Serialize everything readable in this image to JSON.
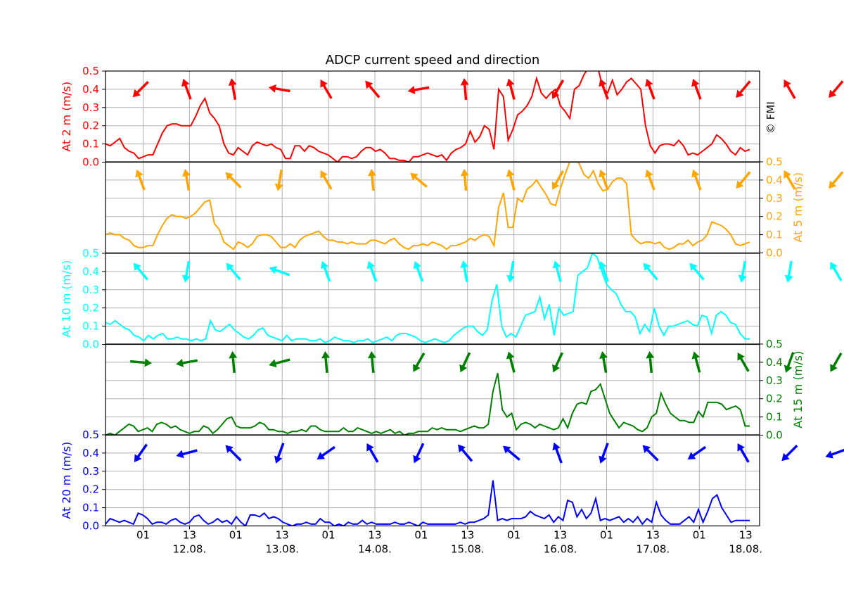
{
  "chart_data": {
    "type": "line",
    "title": "ADCP current speed and direction",
    "watermark": "© FMI",
    "x_major_ticks": [
      "12.08.",
      "13.08.",
      "14.08.",
      "15.08.",
      "16.08.",
      "17.08.",
      "18.08."
    ],
    "x_minor_tick_label_01": "01",
    "x_minor_tick_label_13": "13",
    "y_ticks": [
      "0.0",
      "0.1",
      "0.2",
      "0.3",
      "0.4",
      "0.5"
    ],
    "ylim": [
      0,
      0.5
    ],
    "panels": [
      {
        "name": "At 2 m (m/s)",
        "color": "#ff0000",
        "axis_side": "left",
        "speed": [
          0.1,
          0.09,
          0.11,
          0.13,
          0.08,
          0.06,
          0.05,
          0.02,
          0.03,
          0.04,
          0.04,
          0.1,
          0.16,
          0.2,
          0.21,
          0.21,
          0.2,
          0.2,
          0.2,
          0.25,
          0.31,
          0.35,
          0.27,
          0.24,
          0.2,
          0.1,
          0.05,
          0.04,
          0.08,
          0.06,
          0.04,
          0.09,
          0.11,
          0.1,
          0.09,
          0.1,
          0.08,
          0.07,
          0.02,
          0.02,
          0.09,
          0.09,
          0.06,
          0.09,
          0.08,
          0.06,
          0.05,
          0.04,
          0.02,
          0.0,
          0.03,
          0.03,
          0.02,
          0.03,
          0.06,
          0.08,
          0.08,
          0.06,
          0.07,
          0.05,
          0.02,
          0.02,
          0.01,
          0.01,
          0.0,
          0.03,
          0.03,
          0.04,
          0.05,
          0.04,
          0.03,
          0.04,
          0.01,
          0.05,
          0.07,
          0.08,
          0.1,
          0.17,
          0.11,
          0.14,
          0.2,
          0.18,
          0.07,
          0.4,
          0.36,
          0.12,
          0.18,
          0.26,
          0.28,
          0.31,
          0.36,
          0.46,
          0.38,
          0.35,
          0.38,
          0.4,
          0.31,
          0.28,
          0.24,
          0.4,
          0.42,
          0.48,
          0.52,
          0.55,
          0.51,
          0.41,
          0.38,
          0.45,
          0.37,
          0.4,
          0.44,
          0.46,
          0.43,
          0.4,
          0.2,
          0.09,
          0.05,
          0.09,
          0.1,
          0.1,
          0.09,
          0.12,
          0.09,
          0.04,
          0.05,
          0.04,
          0.06,
          0.08,
          0.1,
          0.15,
          0.13,
          0.1,
          0.06,
          0.04,
          0.08,
          0.06,
          0.07
        ],
        "arrow_directions_deg": [
          45,
          160,
          170,
          100,
          150,
          140,
          80,
          175,
          165,
          30,
          160,
          160,
          160,
          40,
          150,
          40,
          170,
          150,
          40,
          45
        ],
        "arrow_level": 0.4
      },
      {
        "name": "At 5 m (m/s)",
        "color": "#ffa500",
        "axis_side": "right",
        "speed": [
          0.1,
          0.11,
          0.1,
          0.1,
          0.08,
          0.07,
          0.04,
          0.03,
          0.03,
          0.04,
          0.04,
          0.1,
          0.15,
          0.19,
          0.21,
          0.2,
          0.2,
          0.19,
          0.2,
          0.22,
          0.25,
          0.28,
          0.29,
          0.16,
          0.13,
          0.06,
          0.04,
          0.02,
          0.06,
          0.05,
          0.03,
          0.05,
          0.09,
          0.1,
          0.1,
          0.09,
          0.06,
          0.03,
          0.03,
          0.05,
          0.03,
          0.07,
          0.09,
          0.1,
          0.11,
          0.12,
          0.09,
          0.07,
          0.07,
          0.06,
          0.06,
          0.05,
          0.06,
          0.05,
          0.05,
          0.05,
          0.07,
          0.07,
          0.06,
          0.05,
          0.07,
          0.08,
          0.05,
          0.03,
          0.02,
          0.04,
          0.04,
          0.05,
          0.04,
          0.06,
          0.05,
          0.04,
          0.02,
          0.04,
          0.04,
          0.05,
          0.06,
          0.08,
          0.07,
          0.09,
          0.1,
          0.09,
          0.04,
          0.25,
          0.33,
          0.14,
          0.14,
          0.3,
          0.28,
          0.35,
          0.37,
          0.4,
          0.36,
          0.32,
          0.27,
          0.26,
          0.35,
          0.43,
          0.5,
          0.52,
          0.49,
          0.43,
          0.41,
          0.45,
          0.38,
          0.34,
          0.35,
          0.39,
          0.41,
          0.41,
          0.38,
          0.1,
          0.07,
          0.05,
          0.06,
          0.06,
          0.05,
          0.06,
          0.03,
          0.02,
          0.03,
          0.05,
          0.05,
          0.07,
          0.04,
          0.06,
          0.07,
          0.1,
          0.17,
          0.16,
          0.15,
          0.13,
          0.1,
          0.05,
          0.04,
          0.05,
          0.06
        ],
        "arrow_directions_deg": [
          160,
          170,
          135,
          10,
          150,
          175,
          130,
          175,
          165,
          30,
          160,
          160,
          160,
          40,
          150,
          40,
          170,
          150,
          10,
          160
        ],
        "arrow_level": 0.4
      },
      {
        "name": "At 10 m (m/s)",
        "color": "#00ffff",
        "axis_side": "left",
        "speed": [
          0.12,
          0.11,
          0.13,
          0.11,
          0.09,
          0.08,
          0.05,
          0.04,
          0.02,
          0.05,
          0.03,
          0.05,
          0.06,
          0.03,
          0.03,
          0.04,
          0.03,
          0.03,
          0.02,
          0.03,
          0.02,
          0.03,
          0.13,
          0.08,
          0.07,
          0.09,
          0.11,
          0.08,
          0.06,
          0.04,
          0.03,
          0.05,
          0.08,
          0.09,
          0.05,
          0.04,
          0.03,
          0.02,
          0.05,
          0.02,
          0.03,
          0.03,
          0.03,
          0.02,
          0.02,
          0.03,
          0.01,
          0.02,
          0.04,
          0.03,
          0.02,
          0.02,
          0.01,
          0.02,
          0.02,
          0.03,
          0.01,
          0.02,
          0.03,
          0.04,
          0.02,
          0.05,
          0.06,
          0.06,
          0.05,
          0.04,
          0.02,
          0.01,
          0.02,
          0.03,
          0.02,
          0.01,
          0.02,
          0.05,
          0.07,
          0.09,
          0.1,
          0.1,
          0.07,
          0.05,
          0.08,
          0.24,
          0.33,
          0.1,
          0.04,
          0.06,
          0.04,
          0.1,
          0.16,
          0.17,
          0.18,
          0.26,
          0.14,
          0.22,
          0.05,
          0.2,
          0.16,
          0.17,
          0.18,
          0.38,
          0.4,
          0.42,
          0.5,
          0.48,
          0.4,
          0.33,
          0.3,
          0.28,
          0.22,
          0.18,
          0.18,
          0.15,
          0.06,
          0.11,
          0.07,
          0.2,
          0.1,
          0.05,
          0.1,
          0.1,
          0.11,
          0.12,
          0.13,
          0.11,
          0.1,
          0.16,
          0.15,
          0.06,
          0.16,
          0.18,
          0.16,
          0.12,
          0.11,
          0.06,
          0.03,
          0.03
        ],
        "arrow_directions_deg": [
          140,
          10,
          140,
          110,
          160,
          160,
          160,
          170,
          10,
          165,
          160,
          140,
          140,
          10,
          10,
          150,
          140,
          150,
          10,
          30
        ],
        "arrow_level": 0.4
      },
      {
        "name": "At 15 m (m/s)",
        "color": "#008000",
        "axis_side": "right",
        "speed": [
          0.0,
          0.01,
          0.0,
          0.02,
          0.04,
          0.06,
          0.05,
          0.02,
          0.03,
          0.04,
          0.02,
          0.06,
          0.07,
          0.06,
          0.04,
          0.05,
          0.03,
          0.02,
          0.01,
          0.02,
          0.02,
          0.05,
          0.04,
          0.01,
          0.03,
          0.06,
          0.09,
          0.1,
          0.05,
          0.04,
          0.04,
          0.04,
          0.05,
          0.07,
          0.06,
          0.03,
          0.03,
          0.02,
          0.02,
          0.01,
          0.02,
          0.02,
          0.03,
          0.02,
          0.05,
          0.05,
          0.03,
          0.02,
          0.02,
          0.02,
          0.02,
          0.04,
          0.02,
          0.02,
          0.04,
          0.03,
          0.02,
          0.01,
          0.02,
          0.01,
          0.02,
          0.03,
          0.01,
          0.02,
          0.0,
          0.01,
          0.01,
          0.02,
          0.02,
          0.02,
          0.04,
          0.03,
          0.04,
          0.03,
          0.03,
          0.03,
          0.02,
          0.03,
          0.04,
          0.05,
          0.04,
          0.04,
          0.06,
          0.24,
          0.34,
          0.14,
          0.1,
          0.12,
          0.03,
          0.06,
          0.07,
          0.06,
          0.04,
          0.06,
          0.05,
          0.04,
          0.03,
          0.04,
          0.09,
          0.04,
          0.12,
          0.17,
          0.18,
          0.17,
          0.24,
          0.25,
          0.28,
          0.2,
          0.12,
          0.08,
          0.04,
          0.07,
          0.06,
          0.05,
          0.03,
          0.02,
          0.04,
          0.1,
          0.12,
          0.23,
          0.17,
          0.12,
          0.1,
          0.08,
          0.08,
          0.07,
          0.07,
          0.13,
          0.1,
          0.18,
          0.18,
          0.18,
          0.17,
          0.14,
          0.15,
          0.16,
          0.14,
          0.05,
          0.05
        ],
        "arrow_directions_deg": [
          275,
          80,
          175,
          75,
          175,
          175,
          30,
          25,
          165,
          25,
          170,
          175,
          165,
          150,
          20,
          30,
          160,
          140,
          20,
          170
        ],
        "arrow_level": 0.4
      },
      {
        "name": "At 20 m (m/s)",
        "color": "#0000ff",
        "axis_side": "left",
        "speed": [
          0.01,
          0.04,
          0.03,
          0.02,
          0.03,
          0.02,
          0.01,
          0.07,
          0.06,
          0.04,
          0.01,
          0.02,
          0.02,
          0.01,
          0.03,
          0.04,
          0.02,
          0.01,
          0.02,
          0.05,
          0.06,
          0.03,
          0.01,
          0.02,
          0.04,
          0.02,
          0.03,
          0.01,
          0.05,
          0.02,
          0.0,
          0.06,
          0.06,
          0.05,
          0.07,
          0.04,
          0.05,
          0.04,
          0.02,
          0.01,
          0.0,
          0.01,
          0.01,
          0.02,
          0.01,
          0.01,
          0.04,
          0.02,
          0.02,
          0.0,
          0.01,
          0.0,
          0.02,
          0.01,
          0.01,
          0.03,
          0.01,
          0.02,
          0.01,
          0.01,
          0.01,
          0.01,
          0.02,
          0.01,
          0.01,
          0.02,
          0.01,
          0.0,
          0.02,
          0.01,
          0.01,
          0.01,
          0.01,
          0.01,
          0.01,
          0.01,
          0.02,
          0.01,
          0.02,
          0.02,
          0.03,
          0.04,
          0.06,
          0.25,
          0.03,
          0.04,
          0.03,
          0.04,
          0.04,
          0.04,
          0.05,
          0.08,
          0.06,
          0.05,
          0.04,
          0.06,
          0.02,
          0.05,
          0.03,
          0.14,
          0.13,
          0.05,
          0.09,
          0.04,
          0.07,
          0.15,
          0.03,
          0.04,
          0.03,
          0.04,
          0.05,
          0.02,
          0.04,
          0.02,
          0.05,
          0.01,
          0.04,
          0.02,
          0.13,
          0.06,
          0.03,
          0.01,
          0.01,
          0.01,
          0.03,
          0.05,
          0.02,
          0.09,
          0.02,
          0.08,
          0.15,
          0.17,
          0.1,
          0.06,
          0.02,
          0.03,
          0.03,
          0.03,
          0.03
        ],
        "arrow_directions_deg": [
          35,
          75,
          135,
          20,
          55,
          150,
          25,
          140,
          130,
          160,
          20,
          135,
          55,
          150,
          45,
          70,
          45,
          55,
          140,
          70
        ],
        "arrow_level": 0.4
      }
    ]
  }
}
